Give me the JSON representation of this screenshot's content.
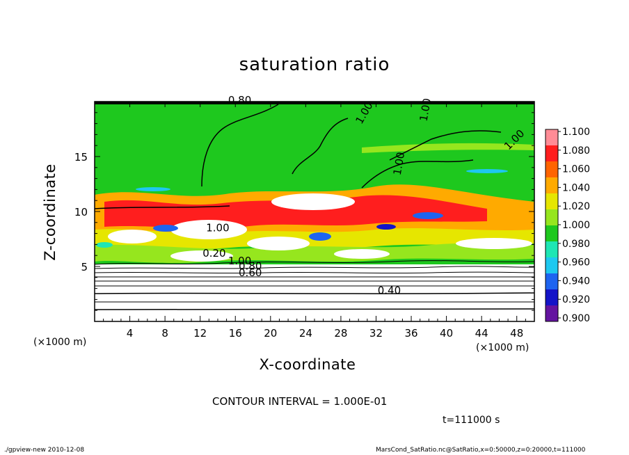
{
  "chart_data": {
    "type": "heatmap",
    "title": "saturation ratio",
    "xlabel": "X-coordinate",
    "ylabel": "Z-coordinate",
    "x_unit_label": "(×1000 m)",
    "xlim": [
      0,
      50
    ],
    "ylim": [
      0,
      20
    ],
    "x_ticks": [
      4,
      8,
      12,
      16,
      20,
      24,
      28,
      32,
      36,
      40,
      44,
      48
    ],
    "y_ticks": [
      5,
      10,
      15
    ],
    "colorbar": {
      "min": 0.9,
      "max": 1.1,
      "levels": [
        "1.100",
        "1.080",
        "1.060",
        "1.040",
        "1.020",
        "1.000",
        "0.980",
        "0.960",
        "0.940",
        "0.920",
        "0.900"
      ],
      "colors": [
        "#ff8c96",
        "#ff1e1e",
        "#ff6400",
        "#ffaa00",
        "#e6e600",
        "#96e61e",
        "#1ec81e",
        "#1ee6b4",
        "#1ec8f0",
        "#1e64f0",
        "#1414c8",
        "#6414a0"
      ]
    },
    "contour_labels": [
      "0.80",
      "1.00",
      "1.00",
      "1.00",
      "1.00",
      "1.00",
      "1.00",
      "0.80",
      "0.60",
      "0.40",
      "0.20"
    ],
    "contour_interval_text": "CONTOUR INTERVAL = 1.000E-01",
    "time_text": "t=111000 s"
  },
  "footer": {
    "left": "./gpview-new   2010-12-08",
    "right": "MarsCond_SatRatio.nc@SatRatio,x=0:50000,z=0:20000,t=111000"
  }
}
